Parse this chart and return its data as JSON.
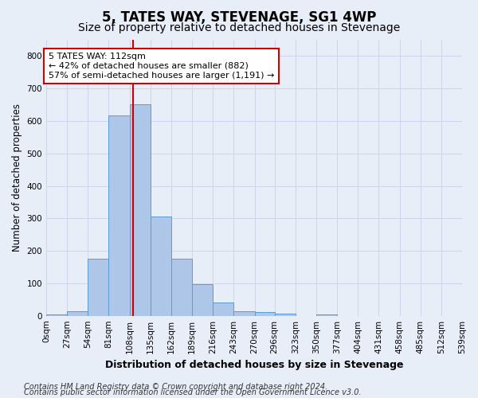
{
  "title": "5, TATES WAY, STEVENAGE, SG1 4WP",
  "subtitle": "Size of property relative to detached houses in Stevenage",
  "xlabel": "Distribution of detached houses by size in Stevenage",
  "ylabel": "Number of detached properties",
  "bar_values": [
    5,
    13,
    175,
    618,
    652,
    305,
    175,
    97,
    40,
    14,
    11,
    7,
    0,
    5,
    0,
    0,
    0,
    0,
    0,
    0
  ],
  "bin_edges": [
    0,
    27,
    54,
    81,
    108,
    135,
    162,
    189,
    216,
    243,
    270,
    296,
    323,
    350,
    377,
    404,
    431,
    458,
    485,
    512,
    539
  ],
  "tick_labels": [
    "0sqm",
    "27sqm",
    "54sqm",
    "81sqm",
    "108sqm",
    "135sqm",
    "162sqm",
    "189sqm",
    "216sqm",
    "243sqm",
    "270sqm",
    "296sqm",
    "323sqm",
    "350sqm",
    "377sqm",
    "404sqm",
    "431sqm",
    "458sqm",
    "485sqm",
    "512sqm",
    "539sqm"
  ],
  "vline_x": 112,
  "bar_color": "#aec6e8",
  "bar_edge_color": "#5b9bd5",
  "vline_color": "#cc0000",
  "annotation_text": "5 TATES WAY: 112sqm\n← 42% of detached houses are smaller (882)\n57% of semi-detached houses are larger (1,191) →",
  "annotation_box_color": "#ffffff",
  "annotation_box_edge": "#cc0000",
  "ylim": [
    0,
    850
  ],
  "yticks": [
    0,
    100,
    200,
    300,
    400,
    500,
    600,
    700,
    800
  ],
  "xlim": [
    0,
    539
  ],
  "grid_color": "#ccd6e8",
  "bg_color": "#e8eef8",
  "plot_bg_color": "#e8eef8",
  "footer_line1": "Contains HM Land Registry data © Crown copyright and database right 2024.",
  "footer_line2": "Contains public sector information licensed under the Open Government Licence v3.0.",
  "title_fontsize": 12,
  "subtitle_fontsize": 10,
  "xlabel_fontsize": 9,
  "ylabel_fontsize": 8.5,
  "tick_fontsize": 7.5,
  "annotation_fontsize": 8,
  "footer_fontsize": 7
}
